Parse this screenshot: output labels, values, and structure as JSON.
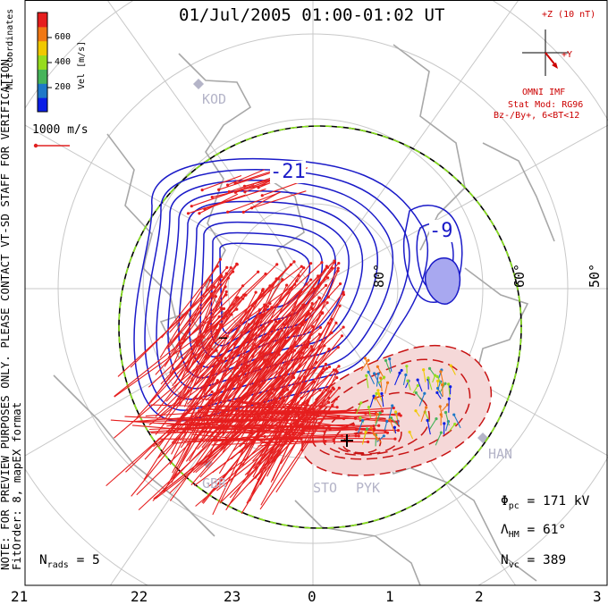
{
  "title": "01/Jul/2005 01:00-01:02 UT",
  "note": {
    "line1": "NOTE: FOR PREVIEW PURPOSES ONLY. PLEASE CONTACT VT-SD STAFF FOR VERIFICATION.",
    "line2": "FitOrder: 8, mapEX format"
  },
  "colorbar": {
    "coord_label": "MLT coordinates",
    "unit_label": "Vel [m/s]",
    "ticks": [
      "600",
      "400",
      "200"
    ],
    "colors": [
      "#0a1ee6",
      "#1e78c8",
      "#46b45a",
      "#96dc1e",
      "#f0c800",
      "#f07814",
      "#e61e1e"
    ]
  },
  "vector_scale": {
    "label": "1000 m/s",
    "color": "#e02020"
  },
  "imf": {
    "z_label": "+Z (10 nT)",
    "y_label": "+Y",
    "omni": "OMNI IMF",
    "model": "Stat Mod: RG96",
    "bin": "Bz-/By+, 6<BT<12",
    "color": "#cc0000"
  },
  "contour_labels": {
    "neg": "-21",
    "pos": "-9",
    "minus": "−"
  },
  "latitudes": {
    "lat80": "80°",
    "lat60": "60°",
    "lat50": "50°"
  },
  "stations": [
    "KOD",
    "HAN",
    "GBR",
    "STO",
    "PYK"
  ],
  "stats": {
    "phi_sym": "Φ",
    "phi_sub": "pc",
    "phi_val": "= 171 kV",
    "lam_sym": "Λ",
    "lam_sub": "HM",
    "lam_val": "= 61°",
    "nvc_sym": "N",
    "nvc_sub": "vc",
    "nvc_val": "= 389",
    "nrads_sym": "N",
    "nrads_sub": "rads",
    "nrads_val": "= 5"
  },
  "mlt_ticks": [
    "21",
    "22",
    "23",
    "0",
    "1",
    "2",
    "3"
  ],
  "contour_colors": {
    "negative": "#1a1ac8",
    "positive": "#c81414",
    "hmb": "#86e01a"
  }
}
